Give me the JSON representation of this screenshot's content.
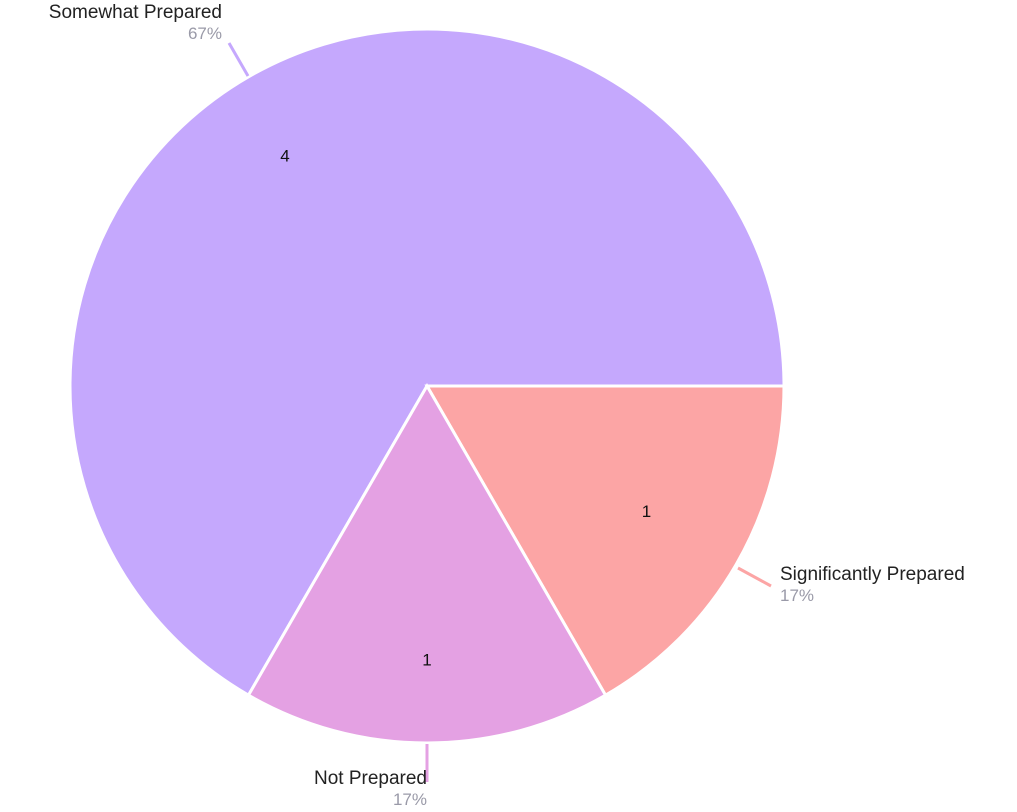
{
  "chart_data": {
    "type": "pie",
    "title": "",
    "slices": [
      {
        "name": "Somewhat Prepared",
        "value": 4,
        "percent": "67%",
        "color": "#c5a8fd"
      },
      {
        "name": "Significantly Prepared",
        "value": 1,
        "percent": "17%",
        "color": "#fca5a5"
      },
      {
        "name": "Not Prepared",
        "value": 1,
        "percent": "17%",
        "color": "#e4a1e3"
      }
    ],
    "total": 6,
    "legend": "none",
    "label_color": "#222222",
    "percent_color": "#9a9aa8"
  }
}
